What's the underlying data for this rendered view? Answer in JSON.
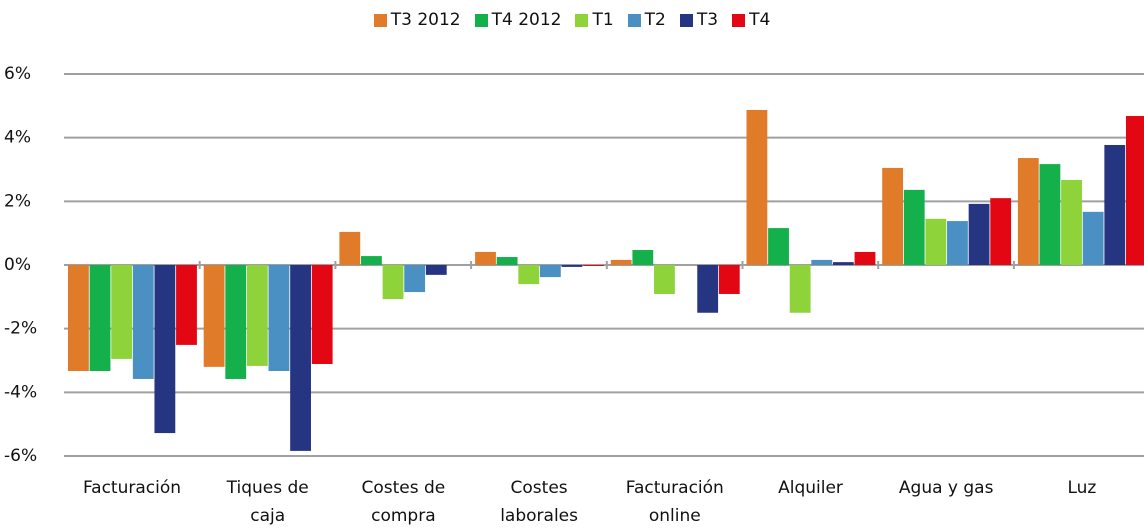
{
  "chart_data": {
    "type": "bar",
    "categories": [
      "Facturación",
      "Tiques de\ncaja",
      "Costes de\ncompra",
      "Costes\nlaborales",
      "Facturación\nonline",
      "Alquiler",
      "Agua y gas",
      "Luz"
    ],
    "series": [
      {
        "name": "T3 2012",
        "color": "#e07b2a",
        "values": [
          -3.33,
          -3.2,
          1.04,
          0.41,
          0.16,
          4.87,
          3.05,
          3.36
        ]
      },
      {
        "name": "T4 2012",
        "color": "#13b04b",
        "values": [
          -3.33,
          -3.58,
          0.28,
          0.25,
          0.47,
          1.16,
          2.36,
          3.17
        ]
      },
      {
        "name": "T1",
        "color": "#8ed33a",
        "values": [
          -2.95,
          -3.17,
          -1.07,
          -0.6,
          -0.91,
          -1.5,
          1.45,
          2.67
        ]
      },
      {
        "name": "T2",
        "color": "#4a90c2",
        "values": [
          -3.58,
          -3.33,
          -0.85,
          -0.38,
          0,
          0.16,
          1.38,
          1.67
        ]
      },
      {
        "name": "T3",
        "color": "#263582",
        "values": [
          -5.28,
          -5.84,
          -0.31,
          -0.06,
          -1.5,
          0.09,
          1.92,
          3.77
        ]
      },
      {
        "name": "T4",
        "color": "#e30613",
        "values": [
          -2.51,
          -3.11,
          0,
          -0.03,
          -0.91,
          0.41,
          2.1,
          4.68
        ]
      }
    ],
    "ylim": [
      -6,
      6
    ],
    "yticks": [
      {
        "value": -6,
        "label": "-6%"
      },
      {
        "value": -4,
        "label": "-4%"
      },
      {
        "value": -2,
        "label": "-2%"
      },
      {
        "value": 0,
        "label": "0%"
      },
      {
        "value": 2,
        "label": "2%"
      },
      {
        "value": 4,
        "label": "4%"
      },
      {
        "value": 6,
        "label": "6%"
      }
    ],
    "grid": true
  }
}
